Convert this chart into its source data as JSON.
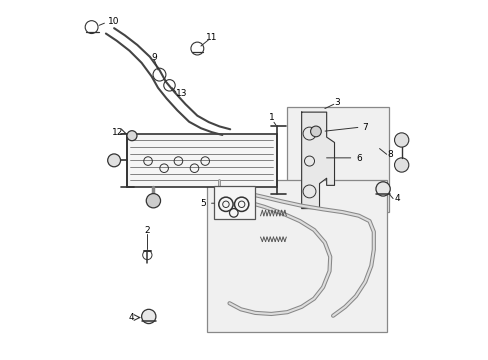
{
  "background_color": "#ffffff",
  "line_color": "#333333",
  "figure_width": 4.89,
  "figure_height": 3.6,
  "dpi": 100
}
